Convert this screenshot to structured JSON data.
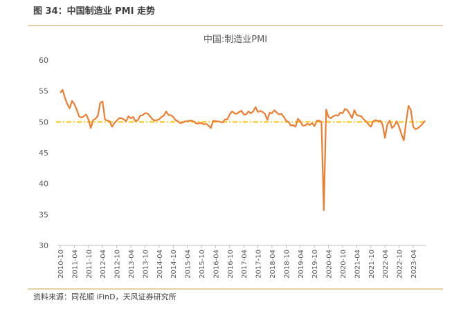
{
  "header": {
    "title": "图 34：中国制造业 PMI 走势"
  },
  "chart_data": {
    "type": "line",
    "title": "中国:制造业PMI",
    "categories": [
      "2010-10",
      null,
      null,
      null,
      null,
      null,
      "2011-04",
      null,
      null,
      null,
      null,
      null,
      "2011-10",
      null,
      null,
      null,
      null,
      null,
      "2012-04",
      null,
      null,
      null,
      null,
      null,
      "2012-10",
      null,
      null,
      null,
      null,
      null,
      "2013-04",
      null,
      null,
      null,
      null,
      null,
      "2013-10",
      null,
      null,
      null,
      null,
      null,
      "2014-04",
      null,
      null,
      null,
      null,
      null,
      "2014-10",
      null,
      null,
      null,
      null,
      null,
      "2015-04",
      null,
      null,
      null,
      null,
      null,
      "2015-10",
      null,
      null,
      null,
      null,
      null,
      "2016-04",
      null,
      null,
      null,
      null,
      null,
      "2016-10",
      null,
      null,
      null,
      null,
      null,
      "2017-04",
      null,
      null,
      null,
      null,
      null,
      "2017-10",
      null,
      null,
      null,
      null,
      null,
      "2018-04",
      null,
      null,
      null,
      null,
      null,
      "2018-10",
      null,
      null,
      null,
      null,
      null,
      "2019-04",
      null,
      null,
      null,
      null,
      null,
      "2019-10",
      null,
      null,
      null,
      null,
      null,
      "2020-04",
      null,
      null,
      null,
      null,
      null,
      "2020-10",
      null,
      null,
      null,
      null,
      null,
      "2021-04",
      null,
      null,
      null,
      null,
      null,
      "2021-10",
      null,
      null,
      null,
      null,
      null,
      "2022-04",
      null,
      null,
      null,
      null,
      null,
      "2022-10",
      null,
      null,
      null,
      null,
      null,
      "2023-04",
      null,
      null,
      null,
      null,
      null
    ],
    "series": [
      {
        "name": "中国:制造业PMI",
        "color": "#ed7d31",
        "values": [
          54.7,
          55.2,
          53.9,
          52.9,
          52.2,
          53.4,
          52.9,
          52.0,
          50.9,
          50.7,
          50.9,
          51.2,
          50.4,
          49.0,
          50.3,
          50.5,
          51.0,
          53.1,
          53.3,
          50.4,
          50.2,
          50.1,
          49.2,
          49.8,
          50.2,
          50.6,
          50.6,
          50.4,
          50.1,
          50.9,
          50.6,
          50.8,
          50.1,
          50.3,
          51.0,
          51.1,
          51.4,
          51.4,
          51.0,
          50.5,
          50.2,
          50.3,
          50.4,
          50.8,
          51.0,
          51.7,
          51.1,
          51.1,
          50.8,
          50.3,
          50.1,
          49.8,
          49.9,
          50.1,
          50.1,
          50.2,
          50.2,
          50.0,
          49.7,
          49.8,
          49.8,
          49.6,
          49.7,
          49.4,
          49.0,
          50.2,
          50.1,
          50.1,
          50.0,
          49.9,
          50.4,
          50.4,
          51.2,
          51.7,
          51.4,
          51.3,
          51.6,
          51.8,
          51.2,
          51.2,
          51.7,
          51.4,
          51.7,
          52.4,
          51.6,
          51.8,
          51.6,
          51.3,
          50.3,
          51.5,
          51.4,
          51.9,
          51.5,
          51.2,
          51.3,
          50.8,
          50.2,
          50.0,
          49.4,
          49.5,
          49.2,
          50.5,
          50.1,
          49.4,
          49.4,
          49.7,
          49.5,
          49.8,
          49.3,
          50.2,
          50.2,
          50.0,
          35.7,
          52.0,
          50.8,
          50.6,
          50.9,
          51.1,
          51.0,
          51.5,
          51.4,
          52.1,
          51.9,
          51.3,
          50.6,
          51.9,
          51.1,
          51.0,
          50.9,
          50.4,
          50.1,
          49.6,
          49.2,
          50.1,
          50.3,
          50.1,
          50.2,
          49.5,
          47.4,
          49.6,
          50.2,
          49.0,
          49.4,
          50.1,
          49.2,
          48.0,
          47.0,
          50.1,
          52.6,
          51.9,
          49.2,
          48.8,
          49.0,
          49.3,
          49.7,
          50.2
        ]
      }
    ],
    "reference_line": {
      "value": 50,
      "color": "#ffc000"
    },
    "ylim": [
      30,
      60
    ],
    "yticks": [
      30,
      35,
      40,
      45,
      50,
      55,
      60
    ],
    "grid": false
  },
  "footer": {
    "source": "资料来源：同花顺 iFinD，天风证券研究所"
  }
}
